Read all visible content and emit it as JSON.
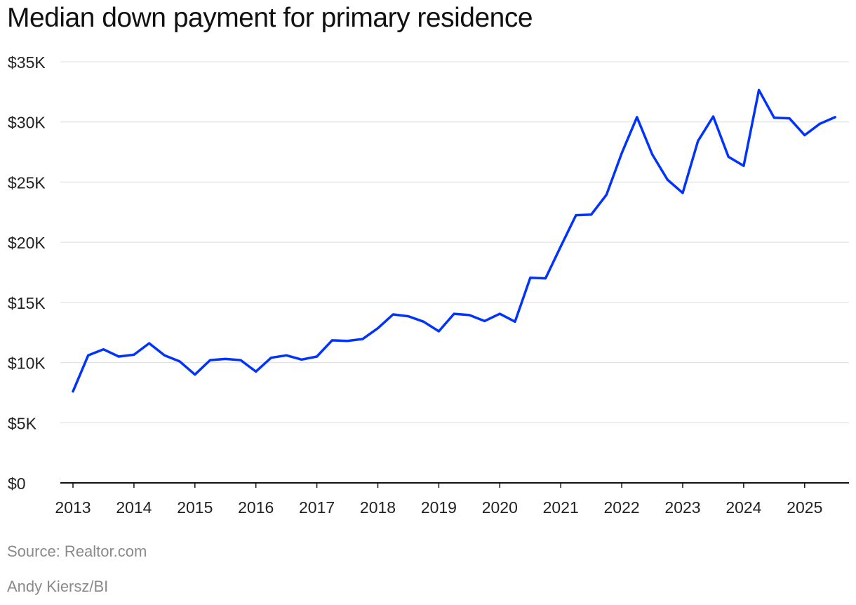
{
  "chart_data": {
    "type": "line",
    "title": "Median down payment for primary residence",
    "xlabel": "",
    "ylabel": "",
    "ylim": [
      0,
      35000
    ],
    "yticks": [
      0,
      5000,
      10000,
      15000,
      20000,
      25000,
      30000,
      35000
    ],
    "ytick_labels": [
      "$0",
      "$5K",
      "$10K",
      "$15K",
      "$20K",
      "$25K",
      "$30K",
      "$35K"
    ],
    "xlim": [
      2013,
      2025.99
    ],
    "xticks": [
      2013,
      2014,
      2015,
      2016,
      2017,
      2018,
      2019,
      2020,
      2021,
      2022,
      2023,
      2024,
      2025
    ],
    "xtick_labels": [
      "2013",
      "2014",
      "2015",
      "2016",
      "2017",
      "2018",
      "2019",
      "2020",
      "2021",
      "2022",
      "2023",
      "2024",
      "2025"
    ],
    "grid": true,
    "series": [
      {
        "name": "Median down payment",
        "color": "#0033ff",
        "x": [
          2013.0,
          2013.25,
          2013.5,
          2013.75,
          2014.0,
          2014.25,
          2014.5,
          2014.75,
          2015.0,
          2015.25,
          2015.5,
          2015.75,
          2016.0,
          2016.25,
          2016.5,
          2016.75,
          2017.0,
          2017.25,
          2017.5,
          2017.75,
          2018.0,
          2018.25,
          2018.5,
          2018.75,
          2019.0,
          2019.25,
          2019.5,
          2019.75,
          2020.0,
          2020.25,
          2020.5,
          2020.75,
          2021.0,
          2021.25,
          2021.5,
          2021.75,
          2022.0,
          2022.25,
          2022.5,
          2022.75,
          2023.0,
          2023.25,
          2023.5,
          2023.75,
          2024.0,
          2024.25,
          2024.5,
          2024.75,
          2025.0,
          2025.25,
          2025.5
        ],
        "values": [
          7600,
          10600,
          11100,
          10500,
          10650,
          11600,
          10600,
          10100,
          9000,
          10200,
          10300,
          10200,
          9250,
          10400,
          10600,
          10250,
          10500,
          11850,
          11800,
          11950,
          12850,
          14000,
          13850,
          13400,
          12600,
          14050,
          13950,
          13450,
          14050,
          13400,
          17050,
          17000,
          19650,
          22250,
          22300,
          23950,
          27400,
          30400,
          27300,
          25200,
          24100,
          28400,
          30450,
          27100,
          26350,
          32650,
          30350,
          30300,
          28900,
          29850,
          30400
        ]
      }
    ]
  },
  "footer": {
    "source": "Source: Realtor.com",
    "credit": "Andy Kiersz/BI"
  }
}
